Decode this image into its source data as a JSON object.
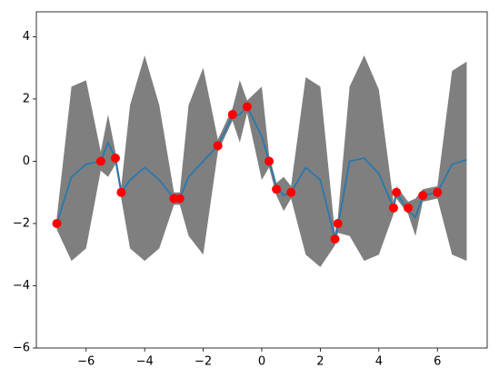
{
  "chart_data": {
    "type": "line",
    "xlim": [
      -7.7,
      7.7
    ],
    "ylim": [
      -6,
      4.8
    ],
    "xticks": [
      {
        "value": -6,
        "label": "−6"
      },
      {
        "value": -4,
        "label": "−4"
      },
      {
        "value": -2,
        "label": "−2"
      },
      0,
      2,
      4,
      6
    ],
    "yticks": [
      {
        "value": -6,
        "label": "−6"
      },
      {
        "value": -4,
        "label": "−4"
      },
      {
        "value": -2,
        "label": "−2"
      },
      0,
      2,
      4
    ],
    "band": {
      "color": "#000000",
      "x": [
        -7,
        -6.5,
        -6,
        -5.5,
        -5.25,
        -5,
        -4.8,
        -4.5,
        -4,
        -3.5,
        -3,
        -2.8,
        -2.5,
        -2,
        -1.5,
        -1,
        -0.75,
        -0.5,
        0,
        0.25,
        0.5,
        0.75,
        1,
        1.5,
        2,
        2.5,
        2.6,
        3,
        3.5,
        4,
        4.5,
        4.6,
        5,
        5.25,
        5.5,
        6,
        6.5,
        7
      ],
      "lower": [
        -2.2,
        -3.2,
        -2.8,
        -0.3,
        -0.5,
        -0.1,
        -1.2,
        -2.8,
        -3.2,
        -2.8,
        -1.4,
        -1.4,
        -2.4,
        -3,
        0.3,
        1.3,
        0.6,
        1.55,
        -0.6,
        -0.2,
        -1.1,
        -1.6,
        -1.2,
        -3,
        -3.4,
        -2.7,
        -2.3,
        -2.4,
        -3.2,
        -3,
        -1.7,
        -1.2,
        -1.7,
        -2.4,
        -1.3,
        -1.2,
        -3,
        -3.2
      ],
      "upper": [
        -1.8,
        2.4,
        2.6,
        0.3,
        1.5,
        0.3,
        -0.8,
        1.8,
        3.4,
        1.8,
        -1,
        -1,
        1.8,
        3,
        0.7,
        1.7,
        2.6,
        1.95,
        2.4,
        0.2,
        -0.7,
        -0.5,
        -0.8,
        2.7,
        2.4,
        -2.3,
        -1.8,
        2.4,
        3.4,
        2.3,
        -1.3,
        -0.8,
        -1.3,
        -1.2,
        -0.9,
        -0.8,
        2.9,
        3.2
      ]
    },
    "mean": {
      "color": "#1f77b4",
      "x": [
        -7,
        -6.5,
        -6,
        -5.5,
        -5.25,
        -5,
        -4.8,
        -4.5,
        -4,
        -3.5,
        -3,
        -2.8,
        -2.5,
        -2,
        -1.5,
        -1,
        -0.75,
        -0.5,
        0,
        0.25,
        0.5,
        0.75,
        1,
        1.5,
        2,
        2.5,
        2.6,
        3,
        3.5,
        4,
        4.5,
        4.6,
        5,
        5.25,
        5.5,
        6,
        6.5,
        7
      ],
      "values": [
        -2,
        -0.5,
        -0.1,
        0,
        0.6,
        0.1,
        -1,
        -0.6,
        -0.2,
        -0.6,
        -1.2,
        -1.2,
        -0.5,
        0,
        0.5,
        1.45,
        1.5,
        1.75,
        0.8,
        0,
        -0.8,
        -1.1,
        -1,
        -0.2,
        -0.6,
        -2.5,
        -2.1,
        0,
        0.1,
        -0.4,
        -1.5,
        -1,
        -1.6,
        -1.8,
        -1.1,
        -1,
        -0.1,
        0.05
      ]
    },
    "points": {
      "color": "#ff0000",
      "x": [
        -7,
        -5.5,
        -5,
        -4.8,
        -3,
        -2.8,
        -1.5,
        -1,
        -0.5,
        0.25,
        0.5,
        1,
        2.5,
        2.6,
        4.5,
        4.6,
        5,
        5.5,
        6
      ],
      "values": [
        -2,
        0,
        0.1,
        -1,
        -1.2,
        -1.2,
        0.5,
        1.5,
        1.75,
        0,
        -0.9,
        -1,
        -2.5,
        -2,
        -1.5,
        -1,
        -1.5,
        -1.1,
        -1
      ]
    }
  }
}
